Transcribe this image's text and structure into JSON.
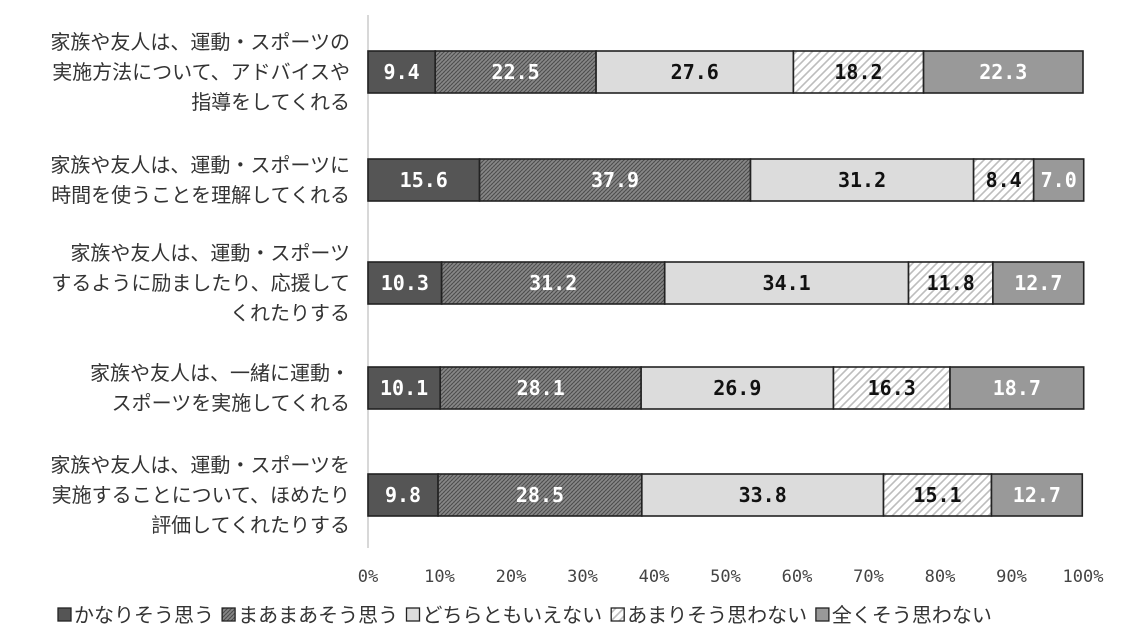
{
  "chart_data": {
    "type": "bar",
    "orientation": "horizontal",
    "stacked": true,
    "categories": [
      [
        "家族や友人は、運動・スポーツの",
        "実施方法について、アドバイスや",
        "指導をしてくれる"
      ],
      [
        "家族や友人は、運動・スポーツに",
        "時間を使うことを理解してくれる"
      ],
      [
        "家族や友人は、運動・スポーツ",
        "するように励ましたり、応援して",
        "くれたりする"
      ],
      [
        "家族や友人は、一緒に運動・",
        "スポーツを実施してくれる"
      ],
      [
        "家族や友人は、運動・スポーツを",
        "実施することについて、ほめたり",
        "評価してくれたりする"
      ]
    ],
    "series": [
      {
        "name": "かなりそう思う",
        "values": [
          9.4,
          15.6,
          10.3,
          10.1,
          9.8
        ],
        "labels": [
          "9.4",
          "15.6",
          "10.3",
          "10.1",
          "9.8"
        ],
        "color": "#555555",
        "label_color": "#ffffff",
        "pattern": "solid"
      },
      {
        "name": "まあまあそう思う",
        "values": [
          22.5,
          37.9,
          31.2,
          28.1,
          28.5
        ],
        "labels": [
          "22.5",
          "37.9",
          "31.2",
          "28.1",
          "28.5"
        ],
        "color": "#777777",
        "label_color": "#ffffff",
        "pattern": "crosshatch"
      },
      {
        "name": "どちらともいえない",
        "values": [
          27.6,
          31.2,
          34.1,
          26.9,
          33.8
        ],
        "labels": [
          "27.6",
          "31.2",
          "34.1",
          "26.9",
          "33.8"
        ],
        "color": "#dcdcdc",
        "label_color": "#111111",
        "pattern": "solid"
      },
      {
        "name": "あまりそう思わない",
        "values": [
          18.2,
          8.4,
          11.8,
          16.3,
          15.1
        ],
        "labels": [
          "18.2",
          "8.4",
          "11.8",
          "16.3",
          "15.1"
        ],
        "color": "#ffffff",
        "label_color": "#111111",
        "pattern": "diagonal"
      },
      {
        "name": "全くそう思わない",
        "values": [
          22.3,
          7.0,
          12.7,
          18.7,
          12.7
        ],
        "labels": [
          "22.3",
          "7.0",
          "12.7",
          "18.7",
          "12.7"
        ],
        "color": "#999999",
        "label_color": "#ffffff",
        "pattern": "solid"
      }
    ],
    "xlim": [
      0,
      100
    ],
    "xticks": [
      "0%",
      "10%",
      "20%",
      "30%",
      "40%",
      "50%",
      "60%",
      "70%",
      "80%",
      "90%",
      "100%"
    ],
    "grid": false,
    "legend_position": "bottom",
    "title": "",
    "xlabel": "",
    "ylabel": ""
  }
}
